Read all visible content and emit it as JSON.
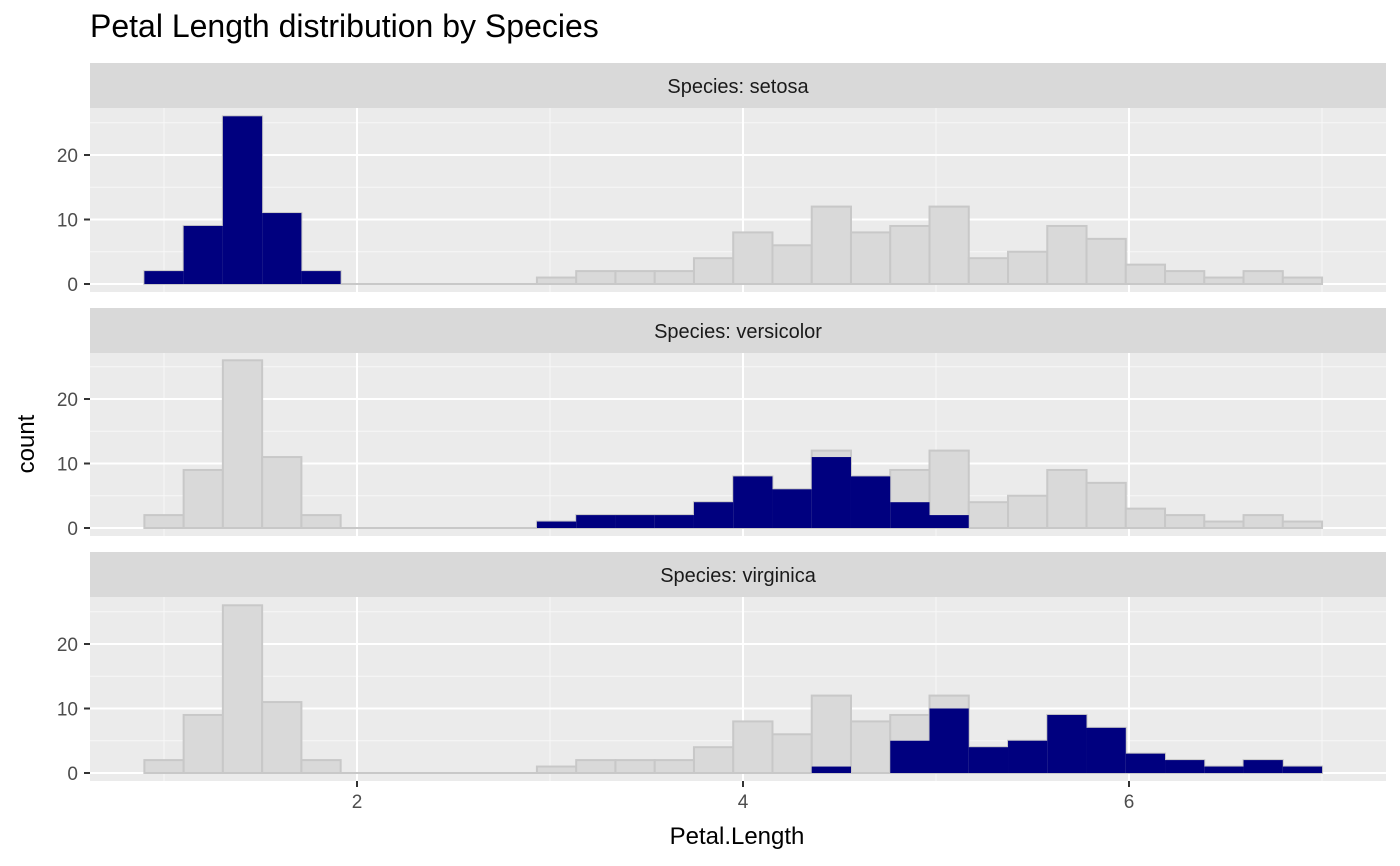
{
  "chart_data": {
    "type": "bar",
    "title": "Petal Length distribution by Species",
    "xlabel": "Petal.Length",
    "ylabel": "count",
    "xlim": [
      0.7,
      7.0
    ],
    "ylim": [
      0,
      26
    ],
    "x_ticks": [
      2,
      4,
      6
    ],
    "y_ticks": [
      0,
      10,
      20
    ],
    "bin_width": 0.2034,
    "bin_start": 0.8983,
    "background_series": {
      "name": "All species",
      "color": "#d9d9d9",
      "values": [
        2,
        9,
        26,
        11,
        2,
        0,
        0,
        0,
        0,
        0,
        1,
        2,
        2,
        2,
        4,
        8,
        6,
        12,
        8,
        9,
        12,
        4,
        5,
        9,
        7,
        3,
        2,
        1,
        2,
        1
      ]
    },
    "facets": [
      {
        "label": "Species: setosa",
        "color": "#00007f",
        "values": [
          2,
          9,
          26,
          11,
          2,
          0,
          0,
          0,
          0,
          0,
          0,
          0,
          0,
          0,
          0,
          0,
          0,
          0,
          0,
          0,
          0,
          0,
          0,
          0,
          0,
          0,
          0,
          0,
          0,
          0
        ]
      },
      {
        "label": "Species: versicolor",
        "color": "#00007f",
        "values": [
          0,
          0,
          0,
          0,
          0,
          0,
          0,
          0,
          0,
          0,
          1,
          2,
          2,
          2,
          4,
          8,
          6,
          11,
          8,
          4,
          2,
          0,
          0,
          0,
          0,
          0,
          0,
          0,
          0,
          0
        ]
      },
      {
        "label": "Species: virginica",
        "color": "#00007f",
        "values": [
          0,
          0,
          0,
          0,
          0,
          0,
          0,
          0,
          0,
          0,
          0,
          0,
          0,
          0,
          0,
          0,
          0,
          1,
          0,
          5,
          10,
          4,
          5,
          9,
          7,
          3,
          2,
          1,
          2,
          1
        ]
      }
    ],
    "grid": true,
    "legend": "none"
  }
}
